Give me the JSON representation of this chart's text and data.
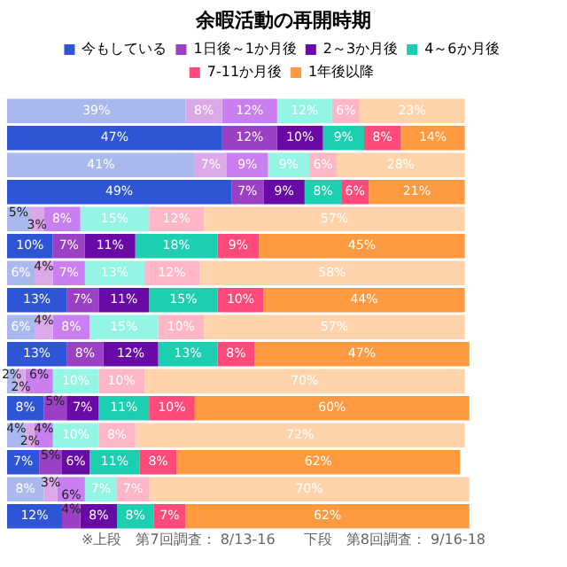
{
  "chart_data": {
    "type": "bar",
    "orientation": "horizontal",
    "stacked": true,
    "title": "余暇活動の再開時期",
    "legend": "top",
    "categories": [
      null,
      null,
      null,
      null,
      null,
      null,
      null,
      null,
      null,
      null,
      null,
      null,
      null,
      null,
      null,
      null
    ],
    "series": [
      {
        "name": "今もしている",
        "color": "#2e55d6",
        "colors": [
          "#a9b9ee",
          "#2e55d6",
          "#a9b9ee",
          "#2e55d6",
          "#a9b9ee",
          "#2e55d6",
          "#a9b9ee",
          "#2e55d6",
          "#a9b9ee",
          "#2e55d6",
          "#a9b9ee",
          "#2e55d6",
          "#a9b9ee",
          "#2e55d6",
          "#a9b9ee",
          "#2e55d6"
        ],
        "values": [
          39,
          47,
          41,
          49,
          5,
          10,
          6,
          13,
          6,
          13,
          2,
          8,
          4,
          7,
          8,
          12
        ],
        "value_labels": [
          "39%",
          "47%",
          "41%",
          "49%",
          "5%",
          "10%",
          "6%",
          "13%",
          "6%",
          "13%",
          "2%",
          "8%",
          "4%",
          "7%",
          "8%",
          "12%"
        ]
      },
      {
        "name": "1日後～1か月後",
        "color": "#9b3fc4",
        "colors": [
          "#dba8e8",
          "#9b3fc4",
          "#dba8e8",
          "#9b3fc4",
          "#dba8e8",
          "#9b3fc4",
          "#dba8e8",
          "#9b3fc4",
          "#dba8e8",
          "#9b3fc4",
          "#dba8e8",
          "#9b3fc4",
          "#dba8e8",
          "#9b3fc4",
          "#dba8e8",
          "#9b3fc4"
        ],
        "values": [
          8,
          12,
          7,
          7,
          3,
          7,
          4,
          7,
          4,
          8,
          2,
          5,
          2,
          5,
          3,
          4
        ],
        "value_labels": [
          "8%",
          "12%",
          "7%",
          "7%",
          "3%",
          "7%",
          "4%",
          "7%",
          "4%",
          "8%",
          "2%",
          "5%",
          "2%",
          "5%",
          "3%",
          "4%"
        ]
      },
      {
        "name": "2～3か月後",
        "color": "#6a0aa6",
        "colors": [
          "#c97ff0",
          "#6a0aa6",
          "#c97ff0",
          "#6a0aa6",
          "#c97ff0",
          "#6a0aa6",
          "#c97ff0",
          "#6a0aa6",
          "#c97ff0",
          "#6a0aa6",
          "#c97ff0",
          "#6a0aa6",
          "#c97ff0",
          "#6a0aa6",
          "#c97ff0",
          "#6a0aa6"
        ],
        "values": [
          12,
          10,
          9,
          9,
          8,
          11,
          7,
          11,
          8,
          12,
          6,
          7,
          4,
          6,
          6,
          8
        ],
        "value_labels": [
          "12%",
          "10%",
          "9%",
          "9%",
          "8%",
          "11%",
          "7%",
          "11%",
          "8%",
          "12%",
          "6%",
          "7%",
          "4%",
          "6%",
          "6%",
          "8%"
        ]
      },
      {
        "name": "4～6か月後",
        "color": "#1ccfb0",
        "colors": [
          "#95f5e4",
          "#1ccfb0",
          "#95f5e4",
          "#1ccfb0",
          "#95f5e4",
          "#1ccfb0",
          "#95f5e4",
          "#1ccfb0",
          "#95f5e4",
          "#1ccfb0",
          "#95f5e4",
          "#1ccfb0",
          "#95f5e4",
          "#1ccfb0",
          "#95f5e4",
          "#1ccfb0"
        ],
        "values": [
          12,
          9,
          9,
          8,
          15,
          18,
          13,
          15,
          15,
          13,
          10,
          11,
          10,
          11,
          7,
          8
        ],
        "value_labels": [
          "12%",
          "9%",
          "9%",
          "8%",
          "15%",
          "18%",
          "13%",
          "15%",
          "15%",
          "13%",
          "10%",
          "11%",
          "10%",
          "11%",
          "7%",
          "8%"
        ]
      },
      {
        "name": "7-11か月後",
        "color": "#ff4a7a",
        "colors": [
          "#ffb6c6",
          "#ff4a7a",
          "#ffb6c6",
          "#ff4a7a",
          "#ffb6c6",
          "#ff4a7a",
          "#ffb6c6",
          "#ff4a7a",
          "#ffb6c6",
          "#ff4a7a",
          "#ffb6c6",
          "#ff4a7a",
          "#ffb6c6",
          "#ff4a7a",
          "#ffb6c6",
          "#ff4a7a"
        ],
        "values": [
          6,
          8,
          6,
          6,
          12,
          9,
          12,
          10,
          10,
          8,
          10,
          10,
          8,
          8,
          7,
          7
        ],
        "value_labels": [
          "6%",
          "8%",
          "6%",
          "6%",
          "12%",
          "9%",
          "12%",
          "10%",
          "10%",
          "8%",
          "10%",
          "10%",
          "8%",
          "8%",
          "7%",
          "7%"
        ]
      },
      {
        "name": "1年後以降",
        "color": "#ff9a40",
        "colors": [
          "#ffd4ac",
          "#ff9a40",
          "#ffd4ac",
          "#ff9a40",
          "#ffd4ac",
          "#ff9a40",
          "#ffd4ac",
          "#ff9a40",
          "#ffd4ac",
          "#ff9a40",
          "#ffd4ac",
          "#ff9a40",
          "#ffd4ac",
          "#ff9a40",
          "#ffd4ac",
          "#ff9a40"
        ],
        "values": [
          23,
          14,
          28,
          21,
          57,
          45,
          58,
          44,
          57,
          47,
          70,
          60,
          72,
          62,
          70,
          62
        ],
        "value_labels": [
          "23%",
          "14%",
          "28%",
          "21%",
          "57%",
          "45%",
          "58%",
          "44%",
          "57%",
          "47%",
          "70%",
          "60%",
          "72%",
          "62%",
          "70%",
          "62%"
        ]
      }
    ],
    "annotations": [
      "※上段　第7回調査： 8/13-16　　下段　第8回調査： 9/16-18"
    ]
  }
}
